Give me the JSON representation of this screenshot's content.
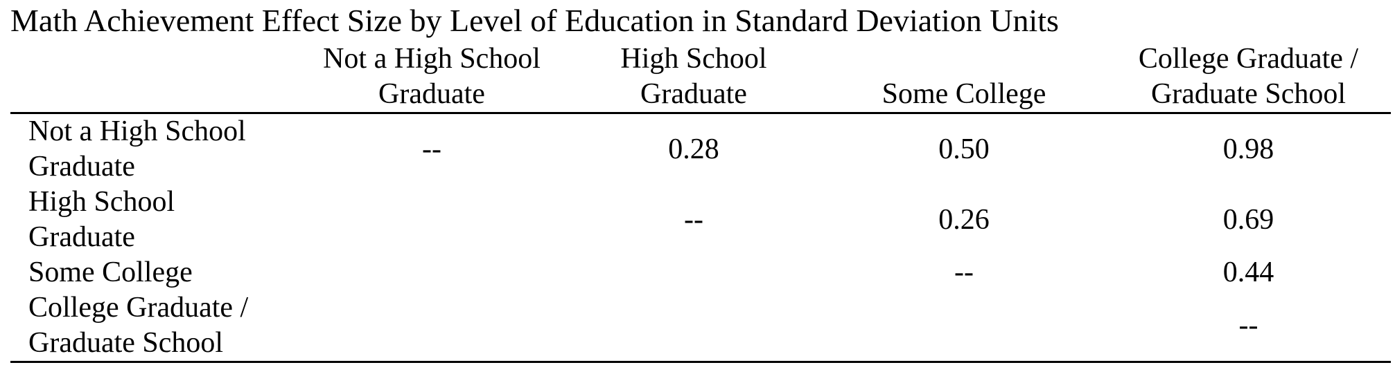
{
  "title": "Math Achievement Effect Size by Level of Education in Standard Deviation Units",
  "columns": [
    "",
    "Not a High School Graduate",
    "High School Graduate",
    "Some College",
    "College Graduate / Graduate School"
  ],
  "column_lines": [
    [
      "",
      ""
    ],
    [
      "Not a High School",
      "Graduate"
    ],
    [
      "High School",
      "Graduate"
    ],
    [
      "",
      "Some College"
    ],
    [
      "College Graduate /",
      "Graduate School"
    ]
  ],
  "rows": [
    {
      "label": [
        "Not a High School",
        "Graduate"
      ],
      "values": [
        "--",
        "0.28",
        "0.50",
        "0.98"
      ]
    },
    {
      "label": [
        "High School",
        "Graduate"
      ],
      "values": [
        "",
        "--",
        "0.26",
        "0.69"
      ]
    },
    {
      "label": [
        "Some College"
      ],
      "values": [
        "",
        "",
        "--",
        "0.44"
      ]
    },
    {
      "label": [
        "College Graduate /",
        "Graduate School"
      ],
      "values": [
        "",
        "",
        "",
        "--"
      ]
    }
  ]
}
